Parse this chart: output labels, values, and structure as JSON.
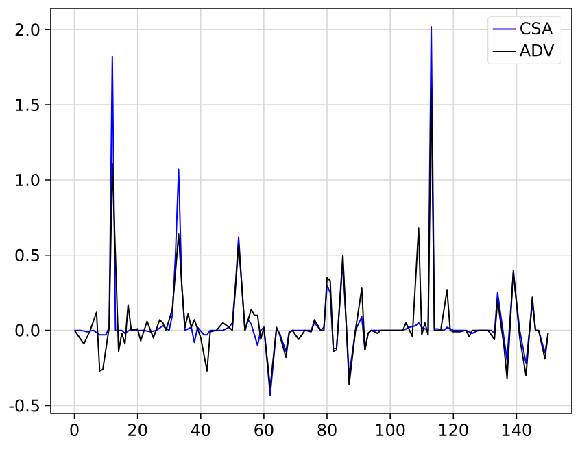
{
  "chart_data": {
    "type": "line",
    "xlim": [
      -7.5,
      157.5
    ],
    "ylim": [
      -0.5525,
      2.1425
    ],
    "xticks": [
      0,
      20,
      40,
      60,
      80,
      100,
      120,
      140
    ],
    "yticks": [
      {
        "value": -0.5,
        "label": "-0.5"
      },
      {
        "value": 0,
        "label": "0.0"
      },
      {
        "value": 0.5,
        "label": "0.5"
      },
      {
        "value": 1,
        "label": "1.0"
      },
      {
        "value": 1.5,
        "label": "1.5"
      },
      {
        "value": 2,
        "label": "2.0"
      }
    ],
    "grid": true,
    "legend": "top right",
    "series": [
      {
        "name": "CSA",
        "color": "#0000ff",
        "x": [
          0,
          2,
          4,
          6,
          8,
          10,
          11,
          12,
          13,
          15,
          16,
          18,
          20,
          22,
          24,
          26,
          28,
          30,
          31,
          32,
          33,
          34,
          35,
          37,
          38,
          39,
          41,
          42,
          43,
          45,
          47,
          49,
          50,
          51,
          52,
          53,
          54,
          55,
          56,
          58,
          59,
          60,
          62,
          64,
          65,
          67,
          68,
          69,
          72,
          75,
          76,
          78,
          79,
          80,
          81,
          82,
          83,
          85,
          87,
          89,
          91,
          92,
          93,
          94,
          100,
          104,
          106,
          108,
          109,
          110,
          112,
          113,
          114,
          115,
          117,
          118,
          120,
          124,
          126,
          128,
          132,
          133,
          134,
          136,
          137,
          139,
          141,
          143,
          145,
          146,
          147,
          149,
          150
        ],
        "values": [
          0,
          0,
          -0.01,
          0,
          -0.03,
          -0.03,
          0.02,
          1.82,
          0,
          0,
          -0.02,
          0.01,
          0,
          0,
          -0.01,
          0,
          0.03,
          0,
          0.1,
          0.5,
          1.07,
          0.3,
          0,
          0.02,
          -0.08,
          0.02,
          -0.03,
          -0.03,
          0,
          0,
          0,
          0.02,
          0.05,
          0.3,
          0.62,
          0.3,
          0,
          0.07,
          0.04,
          -0.1,
          0,
          0.02,
          -0.43,
          0.01,
          -0.02,
          -0.14,
          -0.01,
          0,
          0,
          0,
          0.05,
          0,
          0.02,
          0.3,
          0.25,
          -0.12,
          -0.12,
          0.45,
          -0.3,
          0,
          0.09,
          -0.13,
          -0.02,
          0,
          0,
          0,
          0.02,
          0.03,
          0.05,
          0.02,
          0,
          2.02,
          0.01,
          0.01,
          0,
          0.02,
          0,
          0,
          -0.02,
          0,
          0,
          -0.02,
          0.25,
          -0.05,
          -0.2,
          0.38,
          0,
          -0.22,
          0.18,
          0,
          0,
          -0.15,
          -0.02
        ]
      },
      {
        "name": "ADV",
        "color": "#000000",
        "x": [
          0,
          3,
          5,
          7,
          8,
          9,
          11,
          12,
          14,
          15,
          16,
          17,
          18,
          20,
          21,
          23,
          25,
          27,
          28,
          29,
          31,
          33,
          34,
          35,
          36,
          37,
          38,
          40,
          42,
          43,
          45,
          47,
          49,
          50,
          52,
          53,
          54,
          56,
          57,
          58,
          59,
          60,
          62,
          64,
          65,
          67,
          68,
          69,
          71,
          73,
          75,
          76,
          78,
          79,
          80,
          81,
          82,
          83,
          85,
          87,
          89,
          91,
          92,
          93,
          94,
          96,
          97,
          104,
          105,
          107,
          109,
          110,
          111,
          112,
          113,
          114,
          116,
          118,
          119,
          120,
          122,
          124,
          125,
          126,
          128,
          130,
          131,
          133,
          134,
          136,
          137,
          139,
          141,
          143,
          145,
          146,
          147,
          149,
          150
        ],
        "values": [
          0,
          -0.09,
          0,
          0.12,
          -0.27,
          -0.26,
          0.02,
          1.11,
          -0.14,
          -0.02,
          -0.09,
          0.17,
          0,
          0.01,
          -0.07,
          0.06,
          -0.05,
          0.07,
          0.05,
          0,
          0.14,
          0.64,
          0.3,
          0.02,
          0.11,
          0.02,
          0.07,
          -0.05,
          -0.27,
          -0.01,
          0,
          0.05,
          0.02,
          0,
          0.57,
          0.3,
          0,
          0.14,
          0.1,
          0.1,
          -0.06,
          0.02,
          -0.38,
          0.02,
          -0.03,
          -0.18,
          -0.02,
          0,
          -0.06,
          0,
          -0.01,
          0.07,
          0,
          0,
          0.35,
          0.33,
          -0.14,
          -0.13,
          0.5,
          -0.36,
          0,
          0.28,
          -0.13,
          -0.02,
          0,
          -0.02,
          0,
          0,
          0.05,
          -0.04,
          0.68,
          -0.03,
          0.05,
          -0.03,
          1.61,
          0,
          0,
          0.27,
          0,
          -0.01,
          -0.01,
          0,
          -0.04,
          0,
          0,
          0,
          0,
          -0.06,
          0.2,
          -0.1,
          -0.32,
          0.4,
          -0.05,
          -0.3,
          0.22,
          0,
          0,
          -0.19,
          -0.02
        ]
      }
    ]
  }
}
